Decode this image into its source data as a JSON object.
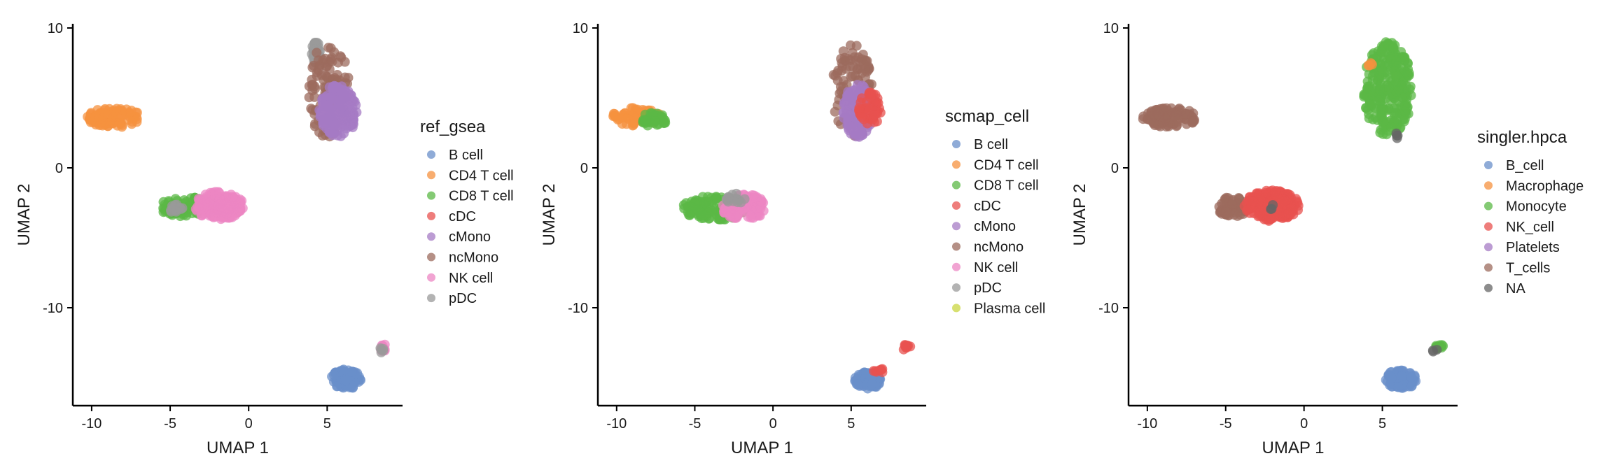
{
  "chart_data": [
    {
      "type": "scatter",
      "xlabel": "UMAP 1",
      "ylabel": "UMAP 2",
      "xlim": [
        -11.2,
        9.8
      ],
      "ylim": [
        -17.0,
        10.3
      ],
      "xticks": [
        -10,
        -5,
        0,
        5
      ],
      "yticks": [
        10,
        0,
        -10
      ],
      "legend_title": "ref_gsea",
      "legend_position": "right",
      "grid": false,
      "categories": [
        {
          "name": "B cell",
          "color": "#6a8fc9"
        },
        {
          "name": "CD4 T cell",
          "color": "#f5913f"
        },
        {
          "name": "CD8 T cell",
          "color": "#5bb846"
        },
        {
          "name": "cDC",
          "color": "#e8524f"
        },
        {
          "name": "cMono",
          "color": "#a57bc4"
        },
        {
          "name": "ncMono",
          "color": "#9c6b5e"
        },
        {
          "name": "NK cell",
          "color": "#ec86c3"
        },
        {
          "name": "pDC",
          "color": "#999999"
        }
      ],
      "clusters": [
        {
          "label": "CD4 T cell",
          "x": [
            -10.3,
            -6.8
          ],
          "y": [
            2.9,
            4.3
          ],
          "n": 90
        },
        {
          "label": "pDC",
          "x": [
            4.0,
            4.6
          ],
          "y": [
            7.5,
            9.0
          ],
          "n": 40
        },
        {
          "label": "ncMono",
          "x": [
            3.8,
            6.4
          ],
          "y": [
            2.0,
            9.0
          ],
          "n": 120
        },
        {
          "label": "cMono",
          "x": [
            4.5,
            6.9
          ],
          "y": [
            2.2,
            6.0
          ],
          "n": 180
        },
        {
          "label": "CD8 T cell",
          "x": [
            -5.8,
            -2.0
          ],
          "y": [
            -3.5,
            -2.1
          ],
          "n": 90
        },
        {
          "label": "pDC",
          "x": [
            -5.0,
            -4.2
          ],
          "y": [
            -3.3,
            -2.6
          ],
          "n": 15
        },
        {
          "label": "NK cell",
          "x": [
            -3.5,
            -0.3
          ],
          "y": [
            -3.7,
            -1.7
          ],
          "n": 170
        },
        {
          "label": "B cell",
          "x": [
            5.2,
            7.2
          ],
          "y": [
            -15.8,
            -14.4
          ],
          "n": 90
        },
        {
          "label": "NK cell",
          "x": [
            8.3,
            8.8
          ],
          "y": [
            -13.1,
            -12.6
          ],
          "n": 12
        },
        {
          "label": "pDC",
          "x": [
            8.3,
            8.6
          ],
          "y": [
            -13.2,
            -12.8
          ],
          "n": 5
        }
      ]
    },
    {
      "type": "scatter",
      "xlabel": "UMAP 1",
      "ylabel": "UMAP 2",
      "xlim": [
        -11.2,
        9.8
      ],
      "ylim": [
        -17.0,
        10.3
      ],
      "xticks": [
        -10,
        -5,
        0,
        5
      ],
      "yticks": [
        10,
        0,
        -10
      ],
      "legend_title": "scmap_cell",
      "legend_position": "right",
      "grid": false,
      "categories": [
        {
          "name": "B cell",
          "color": "#6a8fc9"
        },
        {
          "name": "CD4 T cell",
          "color": "#f5913f"
        },
        {
          "name": "CD8 T cell",
          "color": "#5bb846"
        },
        {
          "name": "cDC",
          "color": "#e8524f"
        },
        {
          "name": "cMono",
          "color": "#a57bc4"
        },
        {
          "name": "ncMono",
          "color": "#9c6b5e"
        },
        {
          "name": "NK cell",
          "color": "#ec86c3"
        },
        {
          "name": "pDC",
          "color": "#999999"
        },
        {
          "name": "Plasma cell",
          "color": "#c9d640"
        }
      ],
      "clusters": [
        {
          "label": "CD4 T cell",
          "x": [
            -10.3,
            -7.2
          ],
          "y": [
            3.0,
            4.3
          ],
          "n": 70
        },
        {
          "label": "CD8 T cell",
          "x": [
            -8.4,
            -6.8
          ],
          "y": [
            2.9,
            4.0
          ],
          "n": 35
        },
        {
          "label": "ncMono",
          "x": [
            3.8,
            6.4
          ],
          "y": [
            2.0,
            9.0
          ],
          "n": 110
        },
        {
          "label": "cMono",
          "x": [
            4.5,
            6.4
          ],
          "y": [
            2.2,
            6.0
          ],
          "n": 140
        },
        {
          "label": "cDC",
          "x": [
            5.5,
            6.9
          ],
          "y": [
            3.0,
            5.4
          ],
          "n": 50
        },
        {
          "label": "CD8 T cell",
          "x": [
            -5.8,
            -1.8
          ],
          "y": [
            -3.8,
            -2.0
          ],
          "n": 150
        },
        {
          "label": "NK cell",
          "x": [
            -3.3,
            -0.3
          ],
          "y": [
            -3.7,
            -1.9
          ],
          "n": 110
        },
        {
          "label": "pDC",
          "x": [
            -3.0,
            -1.5
          ],
          "y": [
            -2.6,
            -1.8
          ],
          "n": 15
        },
        {
          "label": "B cell",
          "x": [
            5.2,
            6.9
          ],
          "y": [
            -15.8,
            -14.6
          ],
          "n": 90
        },
        {
          "label": "cDC",
          "x": [
            6.4,
            7.1
          ],
          "y": [
            -14.8,
            -14.3
          ],
          "n": 8
        },
        {
          "label": "cDC",
          "x": [
            8.3,
            8.8
          ],
          "y": [
            -13.1,
            -12.6
          ],
          "n": 10
        }
      ]
    },
    {
      "type": "scatter",
      "xlabel": "UMAP 1",
      "ylabel": "UMAP 2",
      "xlim": [
        -11.2,
        9.8
      ],
      "ylim": [
        -17.0,
        10.3
      ],
      "xticks": [
        -10,
        -5,
        0,
        5
      ],
      "yticks": [
        10,
        0,
        -10
      ],
      "legend_title": "singler.hpca",
      "legend_position": "right",
      "grid": false,
      "categories": [
        {
          "name": "B_cell",
          "color": "#6a8fc9"
        },
        {
          "name": "Macrophage",
          "color": "#f5913f"
        },
        {
          "name": "Monocyte",
          "color": "#5bb846"
        },
        {
          "name": "NK_cell",
          "color": "#e8524f"
        },
        {
          "name": "Platelets",
          "color": "#a57bc4"
        },
        {
          "name": "T_cells",
          "color": "#9c6b5e"
        },
        {
          "name": "NA",
          "color": "#666666"
        }
      ],
      "clusters": [
        {
          "label": "T_cells",
          "x": [
            -10.3,
            -6.8
          ],
          "y": [
            2.9,
            4.3
          ],
          "n": 90
        },
        {
          "label": "Monocyte",
          "x": [
            3.8,
            6.9
          ],
          "y": [
            2.3,
            9.0
          ],
          "n": 260
        },
        {
          "label": "Macrophage",
          "x": [
            4.0,
            4.4
          ],
          "y": [
            7.2,
            7.6
          ],
          "n": 4
        },
        {
          "label": "NA",
          "x": [
            5.8,
            6.1
          ],
          "y": [
            2.1,
            2.5
          ],
          "n": 4
        },
        {
          "label": "T_cells",
          "x": [
            -5.6,
            -3.5
          ],
          "y": [
            -3.5,
            -2.0
          ],
          "n": 60
        },
        {
          "label": "NK_cell",
          "x": [
            -3.8,
            -0.3
          ],
          "y": [
            -3.8,
            -1.6
          ],
          "n": 230
        },
        {
          "label": "NA",
          "x": [
            -2.2,
            -1.8
          ],
          "y": [
            -3.0,
            -2.6
          ],
          "n": 3
        },
        {
          "label": "B_cell",
          "x": [
            5.2,
            7.2
          ],
          "y": [
            -15.8,
            -14.4
          ],
          "n": 90
        },
        {
          "label": "Monocyte",
          "x": [
            8.4,
            8.9
          ],
          "y": [
            -13.0,
            -12.6
          ],
          "n": 10
        },
        {
          "label": "NA",
          "x": [
            8.2,
            8.5
          ],
          "y": [
            -13.2,
            -12.9
          ],
          "n": 3
        }
      ]
    }
  ]
}
